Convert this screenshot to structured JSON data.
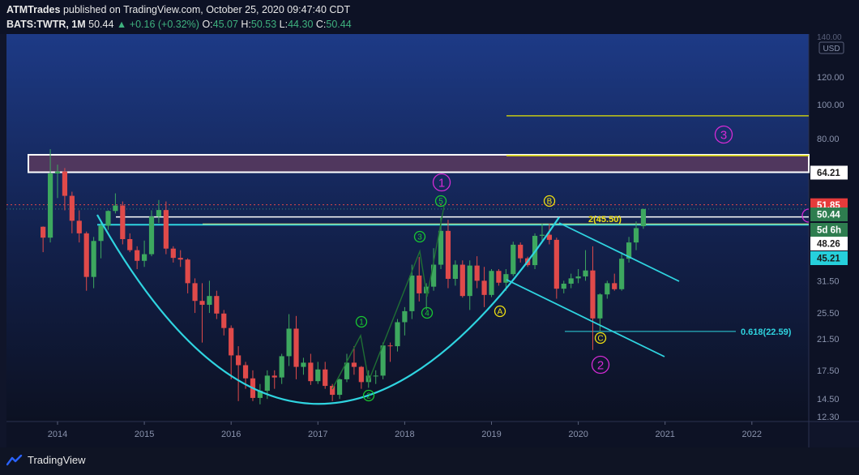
{
  "header": {
    "author": "ATMTrades",
    "published_text": "published on TradingView.com, October 25, 2020 09:47:40 CDT",
    "symbol": "BATS:TWTR, 1M",
    "last": "50.44",
    "change_arrow": "▲",
    "change": "+0.16 (+0.32%)",
    "o_label": "O:",
    "o": "45.07",
    "h_label": "H:",
    "h": "50.53",
    "l_label": "L:",
    "l": "44.30",
    "c_label": "C:",
    "c": "50.44"
  },
  "footer": {
    "brand": "TradingView"
  },
  "axis": {
    "currency": "USD",
    "partial_top_label": "140.00",
    "y_ticks": [
      "120.00",
      "100.00",
      "80.00",
      "64.21",
      "51.85",
      "50.44",
      "5d 6h",
      "48.26",
      "45.21",
      "31.50",
      "25.50",
      "21.50",
      "17.50",
      "14.50",
      "12.30"
    ],
    "x_ticks": [
      "2014",
      "2015",
      "2016",
      "2017",
      "2018",
      "2019",
      "2020",
      "2021",
      "2022"
    ]
  },
  "price_tags": {
    "resistance": "64.21",
    "dotted_level": "51.85",
    "last_price": "50.44",
    "countdown": "5d 6h",
    "level_b": "48.26",
    "level_c": "45.21"
  },
  "annotations": {
    "fib_label": "0.618(22.59)",
    "neckline_label": "2(45.50)",
    "wave_major": [
      "1",
      "2",
      "3"
    ],
    "wave_minor": [
      "1",
      "2",
      "3",
      "4",
      "5"
    ],
    "wave_abc": [
      "A",
      "B",
      "C"
    ]
  },
  "colors": {
    "background": "#10152a",
    "up_candle": "#3da85f",
    "down_candle": "#e04a4a",
    "cup_curve": "#2fd4e0",
    "resistance_box": "#5a3a5e",
    "major_wave": "#d42bd4",
    "minor_wave": "#19c832",
    "abc_wave": "#f0e010",
    "yellow_line": "#e6e600"
  },
  "chart_data": {
    "type": "candlestick",
    "title": "",
    "interval": "1M",
    "y_scale": "log",
    "ylim": [
      12.3,
      140
    ],
    "x_ticks": [
      "2014",
      "2015",
      "2016",
      "2017",
      "2018",
      "2019",
      "2020",
      "2021",
      "2022"
    ],
    "candles": [
      [
        "2013-11",
        44.9,
        45.0,
        38.0,
        41.8
      ],
      [
        "2013-12",
        41.8,
        74.7,
        40.5,
        63.7
      ],
      [
        "2014-01",
        63.7,
        67.5,
        54.2,
        64.5
      ],
      [
        "2014-02",
        64.5,
        66.0,
        50.0,
        55.0
      ],
      [
        "2014-03",
        55.0,
        56.5,
        43.0,
        46.7
      ],
      [
        "2014-04",
        46.7,
        50.0,
        40.5,
        43.0
      ],
      [
        "2014-05",
        43.0,
        43.5,
        29.5,
        32.3
      ],
      [
        "2014-06",
        32.3,
        42.0,
        30.0,
        40.9
      ],
      [
        "2014-07",
        40.9,
        47.0,
        36.5,
        45.2
      ],
      [
        "2014-08",
        45.2,
        50.0,
        44.0,
        49.8
      ],
      [
        "2014-09",
        49.8,
        55.9,
        49.0,
        51.6
      ],
      [
        "2014-10",
        51.6,
        53.0,
        40.0,
        41.4
      ],
      [
        "2014-11",
        41.4,
        43.0,
        38.0,
        38.5
      ],
      [
        "2014-12",
        38.5,
        39.5,
        34.0,
        35.9
      ],
      [
        "2015-01",
        35.9,
        41.0,
        34.5,
        37.5
      ],
      [
        "2015-02",
        37.5,
        50.0,
        37.0,
        48.0
      ],
      [
        "2015-03",
        48.0,
        53.5,
        46.0,
        50.1
      ],
      [
        "2015-04",
        50.1,
        53.0,
        37.5,
        38.9
      ],
      [
        "2015-05",
        38.9,
        39.5,
        35.5,
        36.6
      ],
      [
        "2015-06",
        36.6,
        38.5,
        34.5,
        36.2
      ],
      [
        "2015-07",
        36.2,
        36.5,
        29.0,
        31.0
      ],
      [
        "2015-08",
        31.0,
        32.0,
        25.5,
        27.6
      ],
      [
        "2015-09",
        27.6,
        31.0,
        21.0,
        26.9
      ],
      [
        "2015-10",
        26.9,
        31.5,
        25.5,
        28.5
      ],
      [
        "2015-11",
        28.5,
        29.5,
        24.5,
        25.4
      ],
      [
        "2015-12",
        25.4,
        26.0,
        22.0,
        23.1
      ],
      [
        "2016-01",
        23.1,
        23.5,
        16.5,
        19.3
      ],
      [
        "2016-02",
        19.3,
        20.5,
        14.3,
        18.1
      ],
      [
        "2016-03",
        18.1,
        18.5,
        15.5,
        16.6
      ],
      [
        "2016-04",
        16.6,
        17.5,
        14.3,
        14.6
      ],
      [
        "2016-05",
        14.6,
        16.0,
        14.0,
        15.3
      ],
      [
        "2016-06",
        15.3,
        17.5,
        14.5,
        16.9
      ],
      [
        "2016-07",
        16.9,
        17.5,
        15.5,
        16.7
      ],
      [
        "2016-08",
        16.7,
        19.5,
        16.0,
        19.2
      ],
      [
        "2016-09",
        19.2,
        25.3,
        18.0,
        23.0
      ],
      [
        "2016-10",
        23.0,
        25.0,
        16.5,
        17.9
      ],
      [
        "2016-11",
        17.9,
        19.0,
        17.0,
        18.4
      ],
      [
        "2016-12",
        18.4,
        19.5,
        15.9,
        16.3
      ],
      [
        "2017-01",
        16.3,
        18.5,
        16.0,
        17.6
      ],
      [
        "2017-02",
        17.6,
        18.5,
        15.5,
        15.8
      ],
      [
        "2017-03",
        15.8,
        16.0,
        14.3,
        14.9
      ],
      [
        "2017-04",
        14.9,
        16.6,
        14.5,
        16.5
      ],
      [
        "2017-05",
        16.5,
        19.5,
        16.2,
        18.4
      ],
      [
        "2017-06",
        18.4,
        20.5,
        17.0,
        17.9
      ],
      [
        "2017-07",
        17.9,
        18.0,
        15.5,
        16.2
      ],
      [
        "2017-08",
        16.2,
        17.5,
        15.6,
        16.9
      ],
      [
        "2017-09",
        16.9,
        17.5,
        16.0,
        16.9
      ],
      [
        "2017-10",
        16.9,
        21.0,
        16.5,
        20.6
      ],
      [
        "2017-11",
        20.6,
        21.0,
        18.5,
        20.5
      ],
      [
        "2017-12",
        20.5,
        24.5,
        19.8,
        24.0
      ],
      [
        "2018-01",
        24.0,
        26.5,
        22.0,
        25.8
      ],
      [
        "2018-02",
        25.8,
        35.0,
        24.5,
        32.6
      ],
      [
        "2018-03",
        32.6,
        36.8,
        27.5,
        29.0
      ],
      [
        "2018-04",
        29.0,
        31.0,
        26.0,
        30.3
      ],
      [
        "2018-05",
        30.3,
        39.0,
        29.5,
        35.0
      ],
      [
        "2018-06",
        35.0,
        47.8,
        34.0,
        43.7
      ],
      [
        "2018-07",
        43.7,
        47.0,
        30.0,
        31.9
      ],
      [
        "2018-08",
        31.9,
        36.0,
        30.5,
        35.0
      ],
      [
        "2018-09",
        35.0,
        36.0,
        28.2,
        28.5
      ],
      [
        "2018-10",
        28.5,
        36.0,
        26.0,
        34.8
      ],
      [
        "2018-11",
        34.8,
        37.0,
        30.0,
        31.5
      ],
      [
        "2018-12",
        31.5,
        34.5,
        26.5,
        28.7
      ],
      [
        "2019-01",
        28.7,
        34.0,
        28.3,
        33.6
      ],
      [
        "2019-02",
        33.6,
        34.0,
        30.5,
        31.1
      ],
      [
        "2019-03",
        31.1,
        34.0,
        29.5,
        32.9
      ],
      [
        "2019-04",
        32.9,
        40.7,
        32.5,
        39.9
      ],
      [
        "2019-05",
        39.9,
        40.5,
        35.5,
        36.5
      ],
      [
        "2019-06",
        36.5,
        36.9,
        34.5,
        34.9
      ],
      [
        "2019-07",
        34.9,
        43.0,
        34.0,
        42.3
      ],
      [
        "2019-08",
        42.3,
        45.8,
        41.0,
        42.6
      ],
      [
        "2019-09",
        42.6,
        45.8,
        40.0,
        41.2
      ],
      [
        "2019-10",
        41.2,
        41.8,
        28.0,
        29.9
      ],
      [
        "2019-11",
        29.9,
        31.5,
        29.0,
        30.9
      ],
      [
        "2019-12",
        30.9,
        33.0,
        30.0,
        32.0
      ],
      [
        "2020-01",
        32.0,
        34.0,
        31.0,
        32.4
      ],
      [
        "2020-02",
        32.4,
        38.5,
        31.5,
        33.7
      ],
      [
        "2020-03",
        33.7,
        39.5,
        20.0,
        24.6
      ],
      [
        "2020-04",
        24.6,
        29.0,
        22.5,
        28.8
      ],
      [
        "2020-05",
        28.8,
        31.5,
        28.0,
        31.0
      ],
      [
        "2020-06",
        31.0,
        33.0,
        29.5,
        29.8
      ],
      [
        "2020-07",
        29.8,
        38.0,
        29.5,
        36.4
      ],
      [
        "2020-08",
        36.4,
        42.0,
        35.5,
        40.5
      ],
      [
        "2020-09",
        40.5,
        46.5,
        38.5,
        44.5
      ],
      [
        "2020-10",
        45.07,
        50.53,
        44.3,
        50.44
      ]
    ],
    "levels": {
      "resistance_zone": [
        64.21,
        72.0
      ],
      "dotted_level": 51.85,
      "last_price": 50.44,
      "neckline": 45.5,
      "level_48_26": 48.26,
      "level_45_21": 45.21,
      "fib_0618": 22.59,
      "yellow_target": 93
    }
  }
}
